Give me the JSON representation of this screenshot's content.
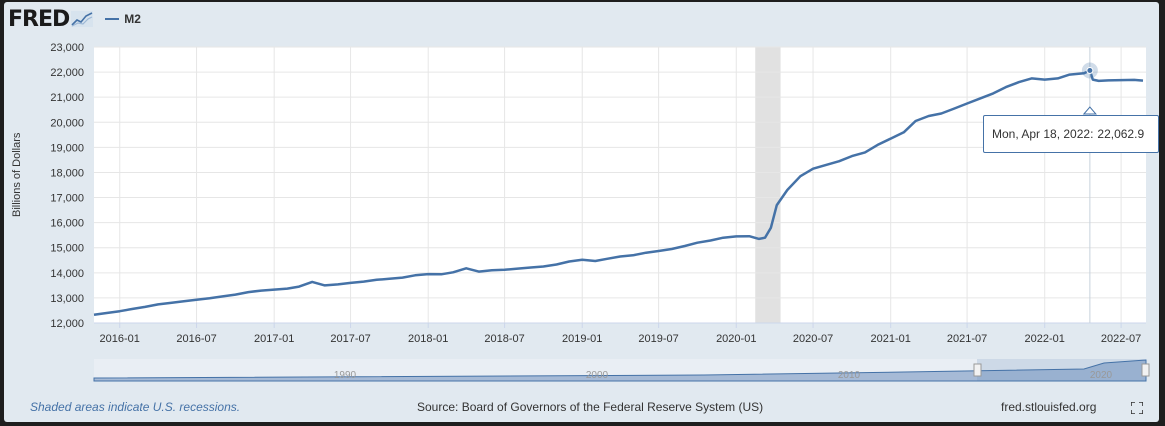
{
  "header": {
    "logo_text": "FRED",
    "legend_label": "M2"
  },
  "colors": {
    "series": "#4572a7",
    "recession": "#e1e1e1",
    "background": "#e1e9f0"
  },
  "tooltip": {
    "date": "Mon, Apr 18, 2022:",
    "value": "22,062.9"
  },
  "navigator": {
    "labels": [
      "1990",
      "2000",
      "2010",
      "2020"
    ]
  },
  "footer": {
    "recession_note": "Shaded areas indicate U.S. recessions.",
    "source": "Source: Board of Governors of the Federal Reserve System (US)",
    "site": "fred.stlouisfed.org"
  },
  "chart_data": {
    "type": "line",
    "title": "",
    "xlabel": "",
    "ylabel": "Billions of Dollars",
    "ylim": [
      12000,
      23000
    ],
    "yticks": [
      "12,000",
      "13,000",
      "14,000",
      "15,000",
      "16,000",
      "17,000",
      "18,000",
      "19,000",
      "20,000",
      "21,000",
      "22,000",
      "23,000"
    ],
    "xticks": [
      "2016-01",
      "2016-07",
      "2017-01",
      "2017-07",
      "2018-01",
      "2018-07",
      "2019-01",
      "2019-07",
      "2020-01",
      "2020-07",
      "2021-01",
      "2021-07",
      "2022-01",
      "2022-07"
    ],
    "xrange": [
      "2015-11-01",
      "2022-08-29"
    ],
    "grid": true,
    "legend": "top-left",
    "recessions": [
      [
        "2020-02-15",
        "2020-04-15"
      ]
    ],
    "series": [
      {
        "name": "M2",
        "points": [
          [
            "2015-11-01",
            12330
          ],
          [
            "2015-12-01",
            12400
          ],
          [
            "2016-01-01",
            12470
          ],
          [
            "2016-02-01",
            12560
          ],
          [
            "2016-03-01",
            12640
          ],
          [
            "2016-04-01",
            12740
          ],
          [
            "2016-05-01",
            12800
          ],
          [
            "2016-06-01",
            12870
          ],
          [
            "2016-07-01",
            12930
          ],
          [
            "2016-08-01",
            12990
          ],
          [
            "2016-09-01",
            13060
          ],
          [
            "2016-10-01",
            13130
          ],
          [
            "2016-11-01",
            13230
          ],
          [
            "2016-12-01",
            13290
          ],
          [
            "2017-01-01",
            13330
          ],
          [
            "2017-02-01",
            13370
          ],
          [
            "2017-03-01",
            13450
          ],
          [
            "2017-04-01",
            13640
          ],
          [
            "2017-05-01",
            13500
          ],
          [
            "2017-06-01",
            13540
          ],
          [
            "2017-07-01",
            13600
          ],
          [
            "2017-08-01",
            13650
          ],
          [
            "2017-09-01",
            13720
          ],
          [
            "2017-10-01",
            13760
          ],
          [
            "2017-11-01",
            13810
          ],
          [
            "2017-12-01",
            13900
          ],
          [
            "2018-01-01",
            13950
          ],
          [
            "2018-02-01",
            13940
          ],
          [
            "2018-03-01",
            14020
          ],
          [
            "2018-04-01",
            14180
          ],
          [
            "2018-05-01",
            14050
          ],
          [
            "2018-06-01",
            14100
          ],
          [
            "2018-07-01",
            14120
          ],
          [
            "2018-08-01",
            14170
          ],
          [
            "2018-09-01",
            14210
          ],
          [
            "2018-10-01",
            14250
          ],
          [
            "2018-11-01",
            14330
          ],
          [
            "2018-12-01",
            14450
          ],
          [
            "2019-01-01",
            14520
          ],
          [
            "2019-02-01",
            14470
          ],
          [
            "2019-03-01",
            14560
          ],
          [
            "2019-04-01",
            14650
          ],
          [
            "2019-05-01",
            14700
          ],
          [
            "2019-06-01",
            14800
          ],
          [
            "2019-07-01",
            14870
          ],
          [
            "2019-08-01",
            14950
          ],
          [
            "2019-09-01",
            15070
          ],
          [
            "2019-10-01",
            15200
          ],
          [
            "2019-11-01",
            15290
          ],
          [
            "2019-12-01",
            15400
          ],
          [
            "2020-01-01",
            15450
          ],
          [
            "2020-02-01",
            15460
          ],
          [
            "2020-02-24",
            15350
          ],
          [
            "2020-03-09",
            15400
          ],
          [
            "2020-03-23",
            15800
          ],
          [
            "2020-04-06",
            16700
          ],
          [
            "2020-05-01",
            17300
          ],
          [
            "2020-06-01",
            17850
          ],
          [
            "2020-07-01",
            18150
          ],
          [
            "2020-08-01",
            18300
          ],
          [
            "2020-09-01",
            18450
          ],
          [
            "2020-10-01",
            18650
          ],
          [
            "2020-11-01",
            18800
          ],
          [
            "2020-12-01",
            19100
          ],
          [
            "2021-01-01",
            19350
          ],
          [
            "2021-02-01",
            19600
          ],
          [
            "2021-03-01",
            20050
          ],
          [
            "2021-04-01",
            20250
          ],
          [
            "2021-05-01",
            20350
          ],
          [
            "2021-06-01",
            20550
          ],
          [
            "2021-07-01",
            20750
          ],
          [
            "2021-08-01",
            20950
          ],
          [
            "2021-09-01",
            21150
          ],
          [
            "2021-10-01",
            21400
          ],
          [
            "2021-11-01",
            21600
          ],
          [
            "2021-12-01",
            21750
          ],
          [
            "2022-01-01",
            21700
          ],
          [
            "2022-02-01",
            21750
          ],
          [
            "2022-03-01",
            21900
          ],
          [
            "2022-04-04",
            21950
          ],
          [
            "2022-04-18",
            22062.9
          ],
          [
            "2022-04-25",
            21700
          ],
          [
            "2022-05-09",
            21650
          ],
          [
            "2022-06-01",
            21670
          ],
          [
            "2022-07-01",
            21680
          ],
          [
            "2022-08-01",
            21690
          ],
          [
            "2022-08-22",
            21660
          ]
        ]
      }
    ]
  }
}
